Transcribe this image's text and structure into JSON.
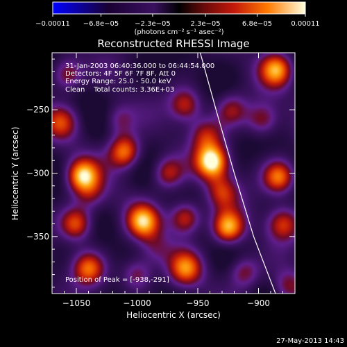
{
  "chart_data": {
    "type": "heatmap",
    "title": "Reconstructed RHESSI Image",
    "xlabel": "Heliocentric X (arcsec)",
    "ylabel": "Heliocentric Y (arcsec)",
    "xlim": [
      -1070,
      -870
    ],
    "ylim": [
      -395,
      -205
    ],
    "x_ticks": [
      -1050,
      -1000,
      -950,
      -900
    ],
    "x_tick_labels": [
      "−1050",
      "−1000",
      "−950",
      "−900"
    ],
    "y_ticks": [
      -250,
      -300,
      -350
    ],
    "y_tick_labels": [
      "−250",
      "−300",
      "−350"
    ],
    "colorbar": {
      "ticks": [
        -0.00011,
        -6.8e-05,
        -2.3e-05,
        2.3e-05,
        6.8e-05,
        0.00011
      ],
      "tick_labels": [
        "−0.00011",
        "−6.8e−05",
        "−2.3e−05",
        "2.3e−05",
        "6.8e−05",
        "0.00011"
      ],
      "unit_text": "(photons cm⁻² s⁻¹ asec⁻²)",
      "range": [
        -0.00011,
        0.00011
      ]
    },
    "annotations": [
      "31-Jan-2003 06:40:36.000 to 06:44:54.000",
      "Detectors: 4F 5F 6F 7F 8F, Att 0",
      "Energy Range: 25.0 - 50.0 keV",
      "Clean    Total counts: 3.36E+03"
    ],
    "peak_label": "Position of Peak = [-938,-291]",
    "peak_position": [
      -938,
      -291
    ],
    "limb_curve": [
      [
        -948,
        -205
      ],
      [
        -935,
        -250
      ],
      [
        -920,
        -300
      ],
      [
        -904,
        -350
      ],
      [
        -886,
        -395
      ]
    ],
    "blobs": [
      {
        "x": -938,
        "y": -291,
        "v": 1.0
      },
      {
        "x": -1045,
        "y": -302,
        "v": 0.85
      },
      {
        "x": -1010,
        "y": -283,
        "v": 0.8
      },
      {
        "x": -925,
        "y": -343,
        "v": 0.85
      },
      {
        "x": -995,
        "y": -338,
        "v": 0.75
      },
      {
        "x": -960,
        "y": -335,
        "v": 0.7
      },
      {
        "x": -1050,
        "y": -340,
        "v": 0.7
      },
      {
        "x": -1040,
        "y": -375,
        "v": 0.65
      },
      {
        "x": -960,
        "y": -375,
        "v": 0.6
      },
      {
        "x": -912,
        "y": -378,
        "v": 0.5
      },
      {
        "x": -883,
        "y": -303,
        "v": 0.75
      },
      {
        "x": -885,
        "y": -218,
        "v": 0.75
      },
      {
        "x": -897,
        "y": -258,
        "v": 0.5
      },
      {
        "x": -922,
        "y": -250,
        "v": 0.45
      },
      {
        "x": -960,
        "y": -246,
        "v": 0.55
      },
      {
        "x": -1058,
        "y": -222,
        "v": 0.6
      },
      {
        "x": -1062,
        "y": -260,
        "v": 0.45
      },
      {
        "x": -975,
        "y": -300,
        "v": 0.55
      },
      {
        "x": -1015,
        "y": -258,
        "v": 0.4
      },
      {
        "x": -930,
        "y": -315,
        "v": 0.5
      },
      {
        "x": -1000,
        "y": -380,
        "v": 0.5
      },
      {
        "x": -880,
        "y": -340,
        "v": 0.55
      },
      {
        "x": -1038,
        "y": -318,
        "v": 0.3
      },
      {
        "x": -985,
        "y": -360,
        "v": 0.25
      },
      {
        "x": -875,
        "y": -390,
        "v": 0.45
      },
      {
        "x": -943,
        "y": -270,
        "v": 0.45
      }
    ]
  },
  "footer": {
    "timestamp": "27-May-2013 14:43"
  }
}
